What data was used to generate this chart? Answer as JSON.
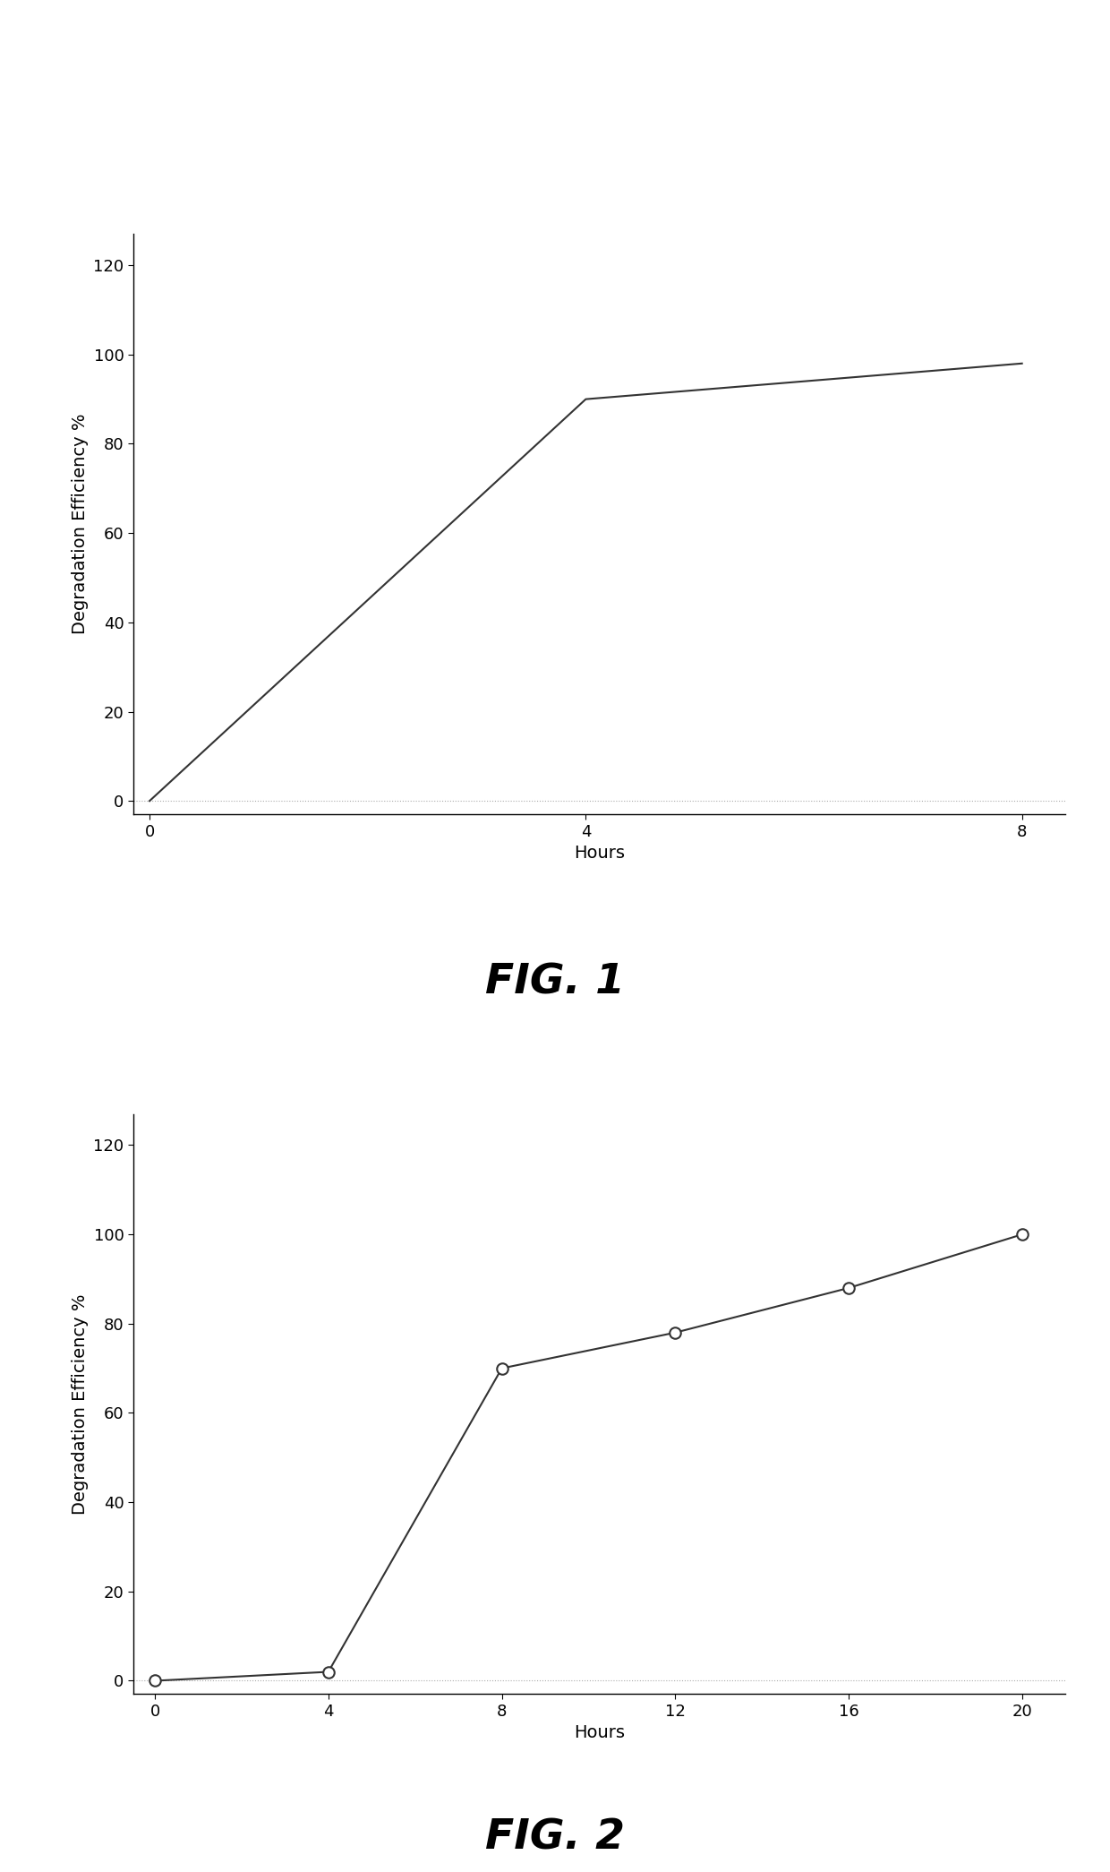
{
  "fig1": {
    "x": [
      0,
      4,
      8
    ],
    "y": [
      0,
      90,
      98
    ],
    "xlabel": "Hours",
    "ylabel": "Degradation Efficiency %",
    "xticks": [
      0,
      4,
      8
    ],
    "yticks": [
      0,
      20,
      40,
      60,
      80,
      100,
      120
    ],
    "ylim": [
      -3,
      127
    ],
    "xlim": [
      -0.15,
      8.4
    ],
    "label": "FIG. 1",
    "line_color": "#333333",
    "line_width": 1.5
  },
  "fig2": {
    "x": [
      0,
      4,
      8,
      12,
      16,
      20
    ],
    "y": [
      0,
      2,
      70,
      78,
      88,
      100
    ],
    "xlabel": "Hours",
    "ylabel": "Degradation Efficiency %",
    "xticks": [
      0,
      4,
      8,
      12,
      16,
      20
    ],
    "yticks": [
      0,
      20,
      40,
      60,
      80,
      100,
      120
    ],
    "ylim": [
      -3,
      127
    ],
    "xlim": [
      -0.5,
      21
    ],
    "label": "FIG. 2",
    "line_color": "#333333",
    "line_width": 1.5,
    "marker": "o",
    "marker_size": 9,
    "marker_facecolor": "white",
    "marker_edgecolor": "#333333",
    "marker_edgewidth": 1.5
  },
  "background_color": "#ffffff",
  "tick_fontsize": 13,
  "label_fontsize": 14,
  "fig_label_fontsize": 34,
  "dotted_color": "#aaaaaa",
  "dotted_lw": 0.8
}
